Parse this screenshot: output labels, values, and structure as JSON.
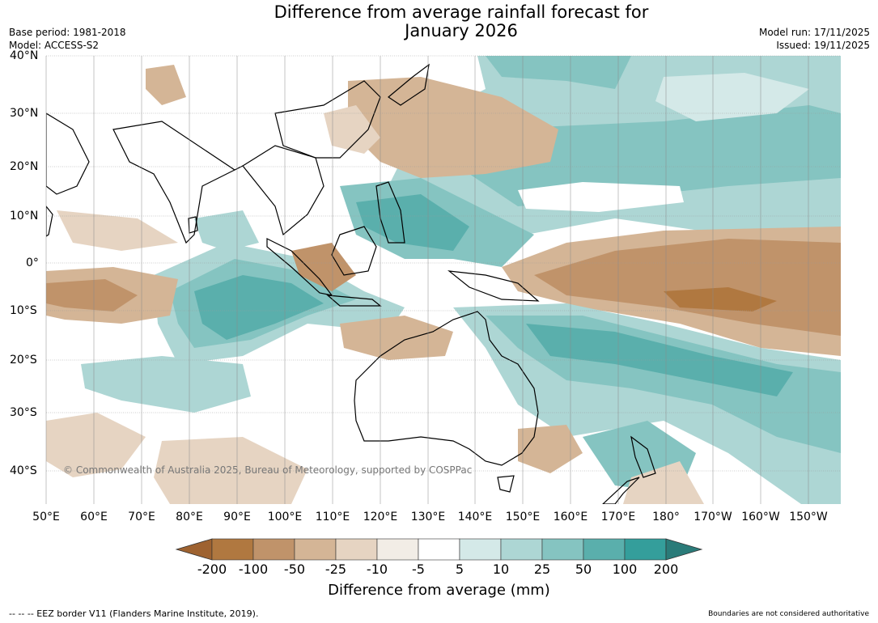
{
  "title_line1": "Difference from average rainfall forecast for",
  "title_line2": "January 2026",
  "base_period": "Base period: 1981-2018",
  "model": "Model: ACCESS-S2",
  "model_run": "Model run: 17/11/2025",
  "issued": "Issued: 19/11/2025",
  "lat_labels": [
    "40°N",
    "30°N",
    "20°N",
    "10°N",
    "0°",
    "10°S",
    "20°S",
    "30°S",
    "40°S"
  ],
  "lon_labels": [
    "50°E",
    "60°E",
    "70°E",
    "80°E",
    "90°E",
    "100°E",
    "110°E",
    "120°E",
    "130°E",
    "140°E",
    "150°E",
    "160°E",
    "170°E",
    "180°",
    "170°W",
    "160°W",
    "150°W"
  ],
  "copyright": "© Commonwealth of Australia 2025, Bureau of Meteorology, supported by COSPPac",
  "legend": {
    "ticks": [
      "-200",
      "-100",
      "-50",
      "-25",
      "-10",
      "-5",
      "5",
      "10",
      "25",
      "50",
      "100",
      "200"
    ],
    "colors": [
      "#9e6230",
      "#b07840",
      "#c0936a",
      "#d4b596",
      "#e6d4c2",
      "#f2ede6",
      "#ffffff",
      "#d4e9e8",
      "#add6d4",
      "#85c4c1",
      "#5aafac",
      "#349e9b",
      "#2a7b79"
    ],
    "title": "Difference from average (mm)"
  },
  "footer_left": "--  --  -- EEZ border V11 (Flanders Marine Institute, 2019).",
  "footer_right": "Boundaries are not considered authoritative"
}
